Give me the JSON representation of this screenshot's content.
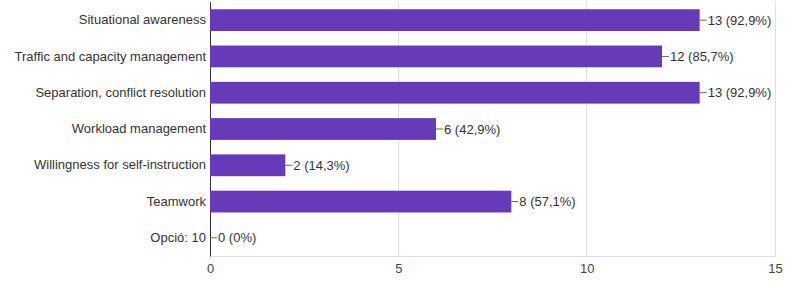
{
  "chart_data": {
    "type": "bar",
    "orientation": "horizontal",
    "categories": [
      "Situational awareness",
      "Traffic and capacity management",
      "Separation, conflict resolution",
      "Workload management",
      "Willingness for self-instruction",
      "Teamwork",
      "Opció: 10"
    ],
    "values": [
      13,
      12,
      13,
      6,
      2,
      8,
      0
    ],
    "value_labels": [
      "13 (92,9%)",
      "12 (85,7%)",
      "13 (92,9%)",
      "6 (42,9%)",
      "2 (14,3%)",
      "8 (57,1%)",
      "0 (0%)"
    ],
    "color": "#673ab7",
    "xlim": [
      0,
      15
    ],
    "xticks": [
      0,
      5,
      10,
      15
    ],
    "grid": true,
    "data_labels": true
  }
}
